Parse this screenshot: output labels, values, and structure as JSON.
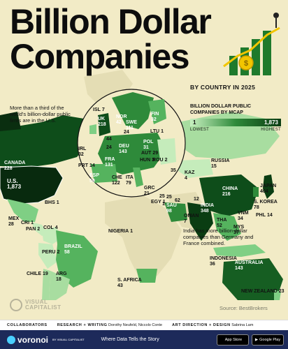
{
  "title": {
    "line1": "Billion Dollar",
    "line2": "Companies",
    "subtitle": "BY COUNTRY IN 2025"
  },
  "legend": {
    "title": "BILLION DOLLAR PUBLIC COMPANIES BY MCAP",
    "min": "1",
    "max": "1,873",
    "low": "LOWEST",
    "high": "HIGHEST"
  },
  "notes": {
    "us": "More than a third of the world's billion-dollar public firms are in the U.S.",
    "india": "India has more billion-dollar companies than Germany and France combined."
  },
  "countries": [
    {
      "code": "U.S.",
      "value": "1,873"
    },
    {
      "code": "CANADA",
      "value": "228"
    },
    {
      "code": "MEX",
      "value": "28"
    },
    {
      "code": "BHS",
      "value": "1"
    },
    {
      "code": "CRI",
      "value": "1"
    },
    {
      "code": "PAN",
      "value": "2"
    },
    {
      "code": "COL",
      "value": "4"
    },
    {
      "code": "PERU",
      "value": "2"
    },
    {
      "code": "BRAZIL",
      "value": "58"
    },
    {
      "code": "CHILE",
      "value": "19"
    },
    {
      "code": "ARG",
      "value": "18"
    },
    {
      "code": "ISL",
      "value": "7"
    },
    {
      "code": "UK",
      "value": "218"
    },
    {
      "code": "IRL",
      "value": "32"
    },
    {
      "code": "NOR",
      "value": "42"
    },
    {
      "code": "SWE",
      "value": "111"
    },
    {
      "code": "FIN",
      "value": "32"
    },
    {
      "code": "DEU",
      "value": "143"
    },
    {
      "code": "POL",
      "value": "31"
    },
    {
      "code": "LTU",
      "value": "1"
    },
    {
      "code": "AUT",
      "value": "29"
    },
    {
      "code": "HUN",
      "value": "3"
    },
    {
      "code": "ROU",
      "value": "2"
    },
    {
      "code": "FRA",
      "value": "131"
    },
    {
      "code": "ESP",
      "value": "59"
    },
    {
      "code": "PRT",
      "value": "14"
    },
    {
      "code": "CHE",
      "value": "122"
    },
    {
      "code": "ITA",
      "value": "79"
    },
    {
      "code": "GRC",
      "value": "21"
    },
    {
      "code": "NLD",
      "value": "44"
    },
    {
      "code": "BEL",
      "value": "24"
    },
    {
      "code": "DNK",
      "value": "24"
    },
    {
      "code": "RUSSIA",
      "value": "15"
    },
    {
      "code": "KAZ",
      "value": "4"
    },
    {
      "code": "EGY",
      "value": "1"
    },
    {
      "code": "NIGERIA",
      "value": "1"
    },
    {
      "code": "S. AFRICA",
      "value": "43"
    },
    {
      "code": "SAU",
      "value": "98"
    },
    {
      "code": "OMAN",
      "value": "7"
    },
    {
      "code": "INDIA",
      "value": "348"
    },
    {
      "code": "CHINA",
      "value": "216"
    },
    {
      "code": "JAPAN",
      "value": "404"
    },
    {
      "code": "S. KOREA",
      "value": "78"
    },
    {
      "code": "PHL",
      "value": "14"
    },
    {
      "code": "VNM",
      "value": "34"
    },
    {
      "code": "THA",
      "value": "52"
    },
    {
      "code": "MYS",
      "value": "37"
    },
    {
      "code": "INDONESIA",
      "value": "36"
    },
    {
      "code": "AUSTRALIA",
      "value": "143"
    },
    {
      "code": "NEW ZEALAND",
      "value": "23"
    },
    {
      "code": "",
      "value": "35"
    },
    {
      "code": "",
      "value": "25"
    },
    {
      "code": "",
      "value": "62"
    },
    {
      "code": "",
      "value": "12"
    },
    {
      "code": "",
      "value": "1"
    },
    {
      "code": "",
      "value": "25"
    }
  ],
  "source": "Source: BestBrokers",
  "logo": {
    "line1": "VISUAL",
    "line2": "CAPITALIST"
  },
  "credits": {
    "collaborators": "COLLABORATORS",
    "research_label": "RESEARCH + WRITING",
    "research_names": "Dorothy Neufeld, Niccolo Conte",
    "art_label": "ART DIRECTION + DESIGN",
    "art_names": "Sabrina Lam"
  },
  "footer": {
    "brand": "voronoi",
    "by": "BY VISUAL CAPITALIST",
    "tagline": "Where Data Tells the Story",
    "appstore": "App Store",
    "googleplay": "Google Play"
  },
  "colors": {
    "background": "#f2ebc6",
    "land_low": "#c8f0c0",
    "land_high": "#0b3d12",
    "footer": "#1d2a5a"
  }
}
